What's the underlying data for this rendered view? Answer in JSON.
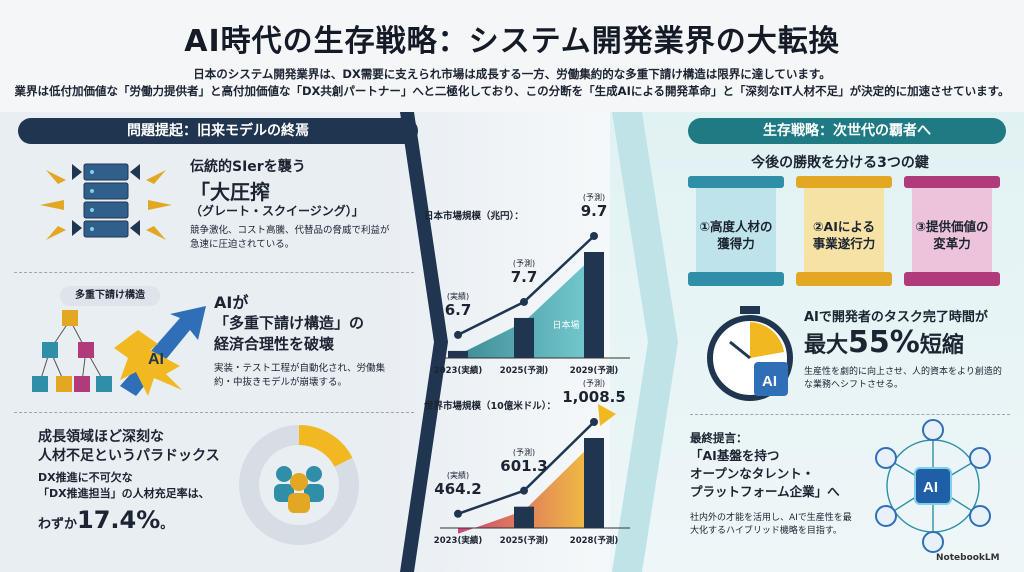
{
  "title": "AI時代の生存戦略：システム開発業界の大転換",
  "lead": [
    "日本のシステム開発業界は、DX需要に支えられ市場は成長する一方、労働集約的な多重下請け構造は限界に達しています。",
    "業界は低付加価値な「労働力提供者」と高付加価値な「DX共創パートナー」へと二極化しており、この分断を「生成AIによる開発革命」と「深刻なIT人材不足」が決定的に加速させています。"
  ],
  "left": {
    "header": "問題提起：旧来モデルの終焉",
    "p1": {
      "title": "伝統的SIerを襲う",
      "big": "「大圧搾",
      "sub": "（グレート・スクイージング）」",
      "desc": "競争激化、コスト高騰、代替品の脅威で利益が急速に圧迫されている。"
    },
    "p2": {
      "tag": "多重下請け構造",
      "title_lines": [
        "AIが",
        "「多重下請け構造」の",
        "経済合理性を破壊"
      ],
      "desc": "実装・テスト工程が自動化され、労働集約・中抜きモデルが崩壊する。",
      "ai_label": "AI"
    },
    "p3": {
      "title_lines": [
        "成長領域ほど深刻な",
        "人材不足というパラドックス"
      ],
      "desc_lines": [
        "DX推進に不可欠な",
        "「DX推進担当」の人材充足率は、"
      ],
      "val_prefix": "わずか",
      "val": "17.4%",
      "val_suffix": "。",
      "fill_ratio": 0.174
    }
  },
  "chart_data": [
    {
      "type": "area",
      "title": "日本市場規模（兆円）：",
      "series_label": "日本場",
      "categories": [
        "2023(実績)",
        "2025(予測)",
        "2029(予測)"
      ],
      "values": [
        6.7,
        7.7,
        9.7
      ],
      "notes": [
        "(実績)",
        "(予測)",
        "(予測)"
      ]
    },
    {
      "type": "area",
      "title": "世界市場規模（10億米ドル）：",
      "categories": [
        "2023(実績)",
        "2025(予測)",
        "2028(予測)"
      ],
      "values": [
        464.2,
        601.3,
        1008.5
      ],
      "value_labels": [
        "464.2",
        "601.3",
        "1,008.5"
      ],
      "notes": [
        "(実績)",
        "(予測)",
        "(予測)"
      ]
    }
  ],
  "right": {
    "header": "生存戦略：次世代の覇者へ",
    "keys_title": "今後の勝敗を分ける3つの鍵",
    "pillars": [
      {
        "lines": [
          "①高度人材の",
          "獲得力"
        ],
        "color": "#2f8fa8"
      },
      {
        "lines": [
          "②AIによる",
          "事業遂行力"
        ],
        "color": "#e2a823"
      },
      {
        "lines": [
          "③提供価値の",
          "変革力"
        ],
        "color": "#b03a7a"
      }
    ],
    "r2": {
      "title": "AIで開発者のタスク完了時間が",
      "big_prefix": "最大",
      "big_num": "55%",
      "big_suffix": "短縮",
      "desc": "生産性を劇的に向上させ、人的資本をより創造的な業務へシフトさせる。",
      "ai_label": "AI"
    },
    "r3": {
      "label": "最終提言：",
      "title_lines": [
        "「AI基盤を持つ",
        "オープンなタレント・",
        "プラットフォーム企業」へ"
      ],
      "desc": "社内外の才能を活用し、AIで生産性を最大化するハイブリッド機略を目指す。",
      "ai_label": "AI"
    }
  },
  "brand": "NotebookLM",
  "colors": {
    "navy": "#1f3550",
    "teal": "#1f7a84",
    "gold": "#f2b81f",
    "magenta": "#c8255e"
  }
}
